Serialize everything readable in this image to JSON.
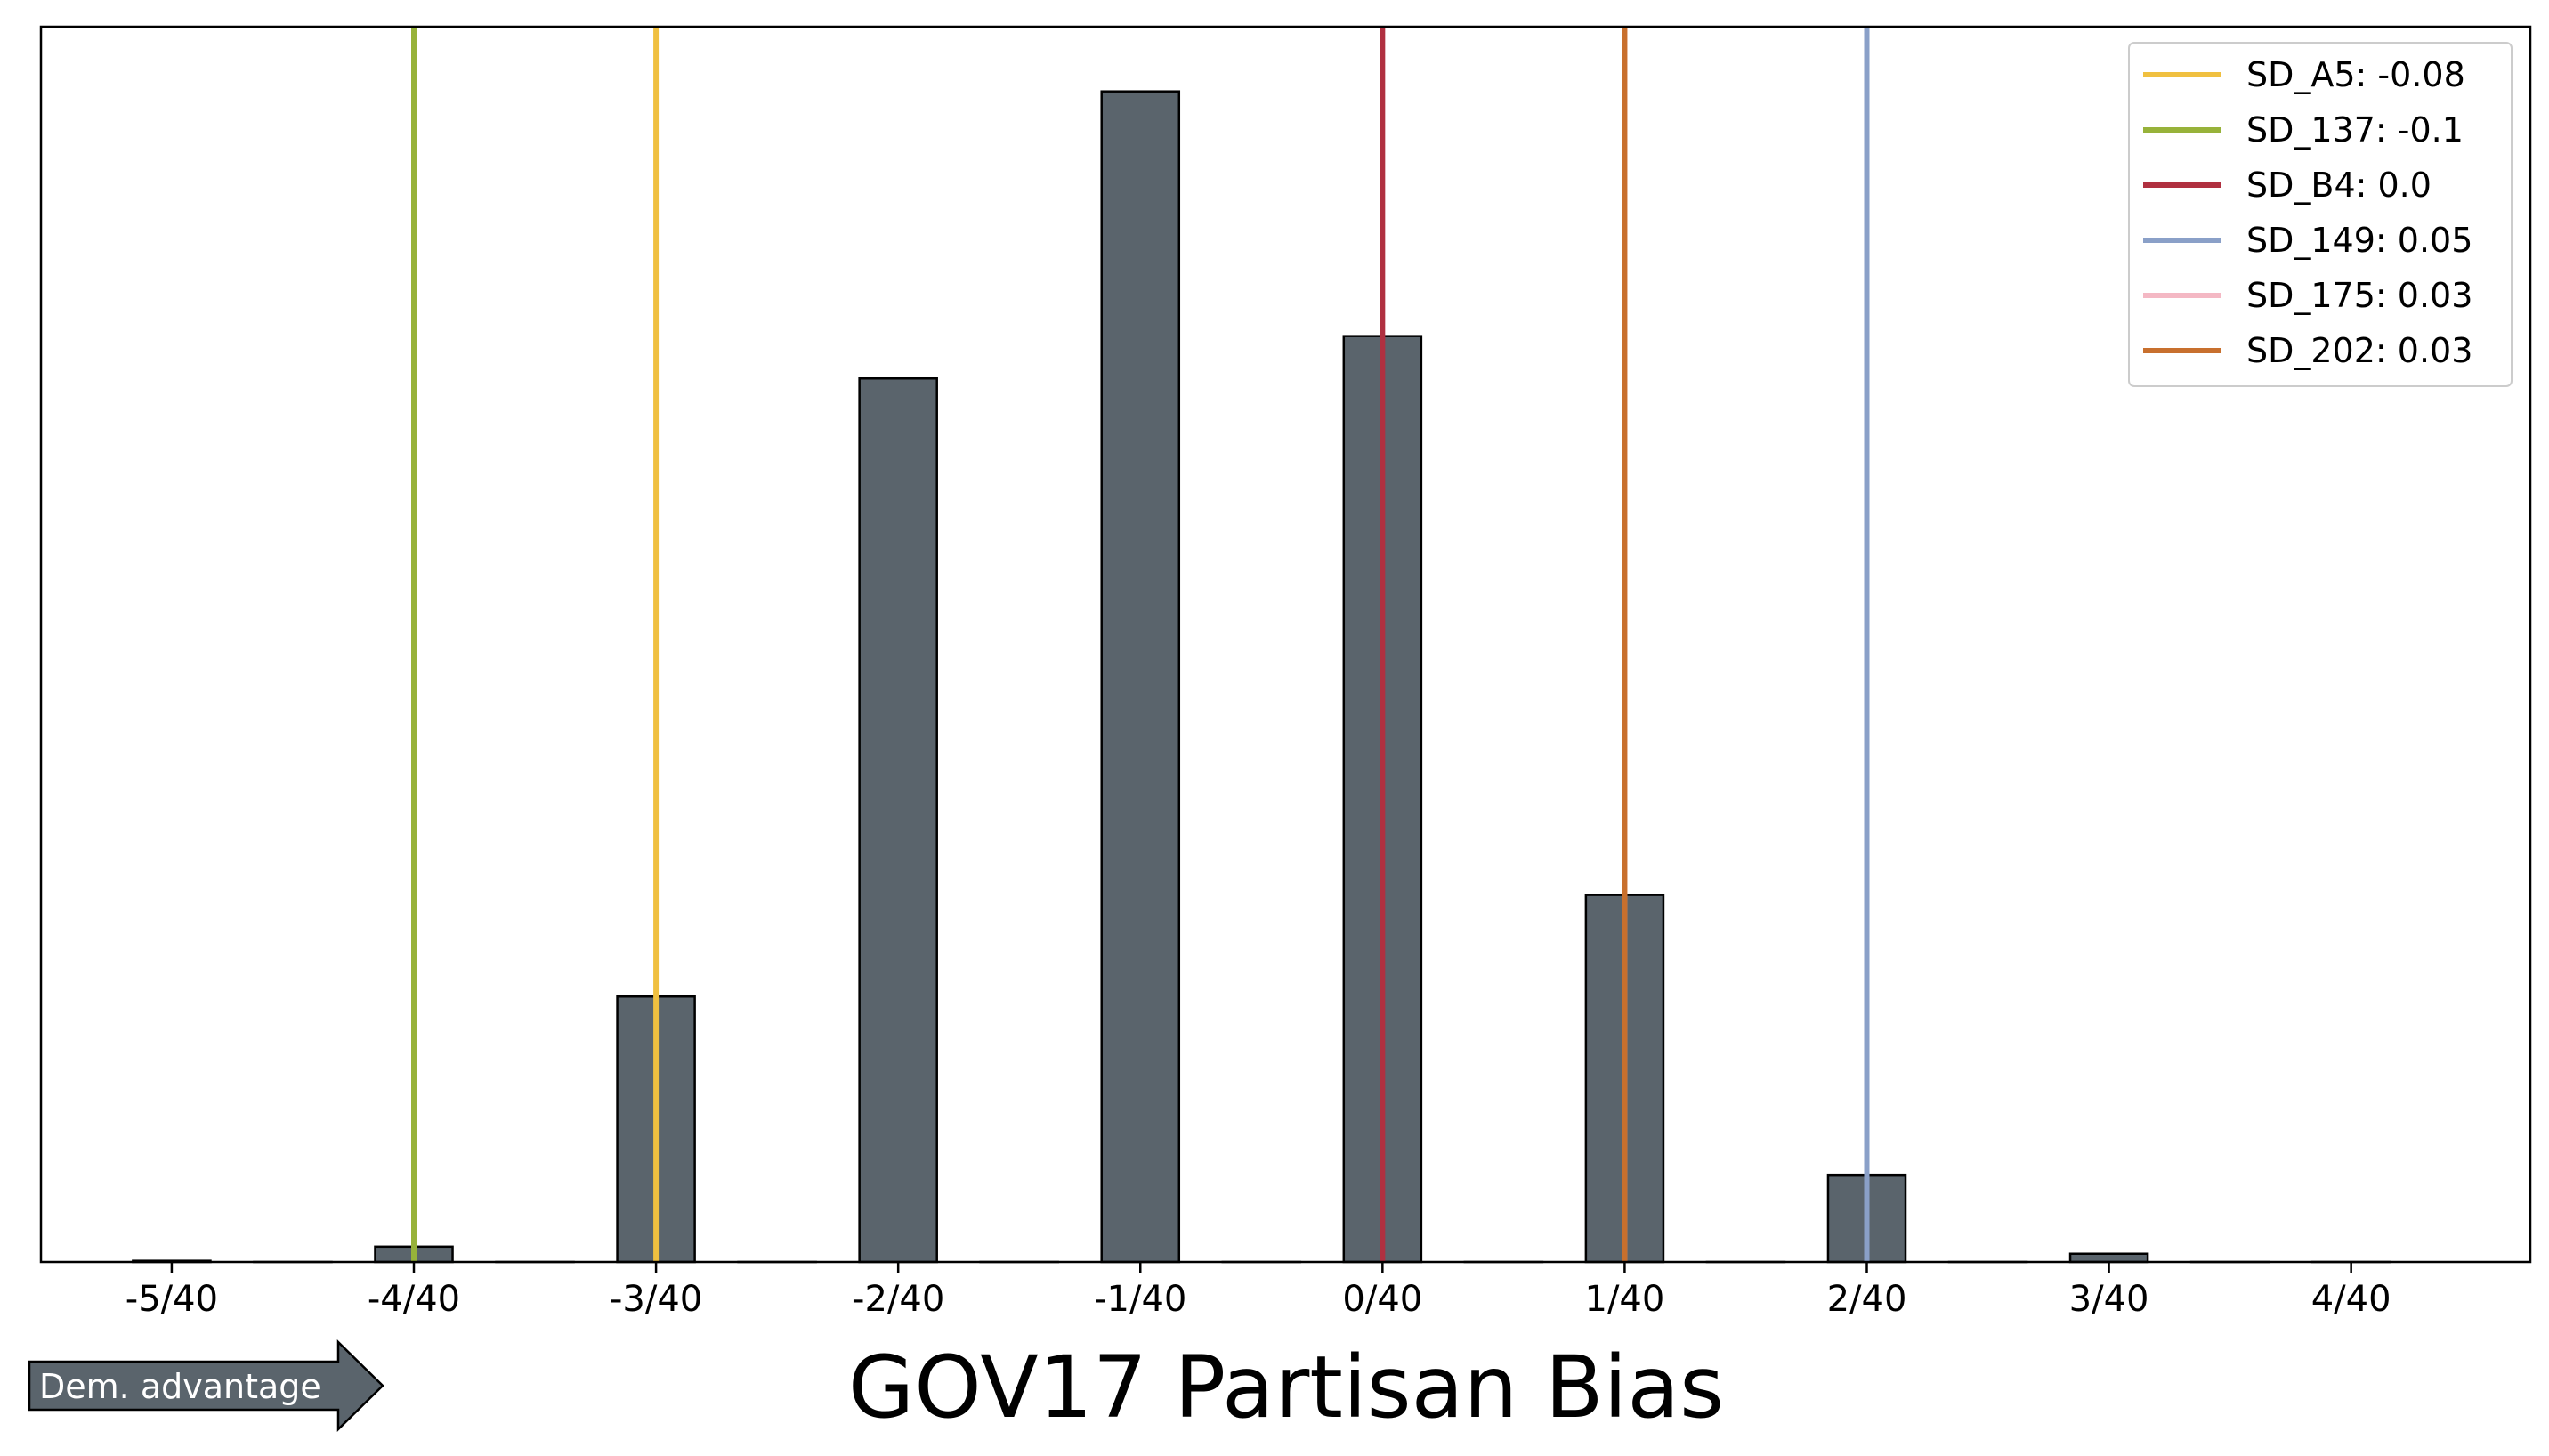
{
  "chart_data": {
    "type": "bar",
    "xlabel": "GOV17 Partisan Bias",
    "x_ticks": [
      "-5/40",
      "-4/40",
      "-3/40",
      "-2/40",
      "-1/40",
      "0/40",
      "1/40",
      "2/40",
      "3/40",
      "4/40"
    ],
    "x_tick_values": [
      -0.125,
      -0.1,
      -0.075,
      -0.05,
      -0.025,
      0.0,
      0.025,
      0.05,
      0.075,
      0.1
    ],
    "xlim": [
      -0.1385,
      0.1185
    ],
    "ylim": [
      0,
      1050
    ],
    "y_axis_visible": false,
    "grid": false,
    "bar_color": "#5a646c",
    "bar_edge_color": "#000000",
    "bar_width": 0.008,
    "bars": [
      {
        "x": -0.125,
        "value": 1
      },
      {
        "x": -0.1125,
        "value": 0
      },
      {
        "x": -0.1,
        "value": 13
      },
      {
        "x": -0.0875,
        "value": 0
      },
      {
        "x": -0.075,
        "value": 226
      },
      {
        "x": -0.0625,
        "value": 0
      },
      {
        "x": -0.05,
        "value": 751
      },
      {
        "x": -0.0375,
        "value": 0
      },
      {
        "x": -0.025,
        "value": 995
      },
      {
        "x": -0.0125,
        "value": 0
      },
      {
        "x": 0.0,
        "value": 787
      },
      {
        "x": 0.0125,
        "value": 0
      },
      {
        "x": 0.025,
        "value": 312
      },
      {
        "x": 0.0375,
        "value": 0
      },
      {
        "x": 0.05,
        "value": 74
      },
      {
        "x": 0.0625,
        "value": 0
      },
      {
        "x": 0.075,
        "value": 7
      },
      {
        "x": 0.0875,
        "value": 0
      },
      {
        "x": 0.1,
        "value": 0
      }
    ],
    "vlines": [
      {
        "name": "SD_A5: -0.08",
        "x": -0.075,
        "color": "#f0c040"
      },
      {
        "name": "SD_137: -0.1",
        "x": -0.1,
        "color": "#97b23a"
      },
      {
        "name": "SD_B4: 0.0",
        "x": 0.0,
        "color": "#b03040"
      },
      {
        "name": "SD_149: 0.05",
        "x": 0.05,
        "color": "#8aa0c8"
      },
      {
        "name": "SD_175: 0.03",
        "x": 0.025,
        "color": "#f4b8c4"
      },
      {
        "name": "SD_202: 0.03",
        "x": 0.025,
        "color": "#c8702e"
      }
    ],
    "legend_placement": "top-right"
  },
  "annotation": {
    "arrow_label": "Dem. advantage",
    "arrow_color": "#5a646c"
  }
}
